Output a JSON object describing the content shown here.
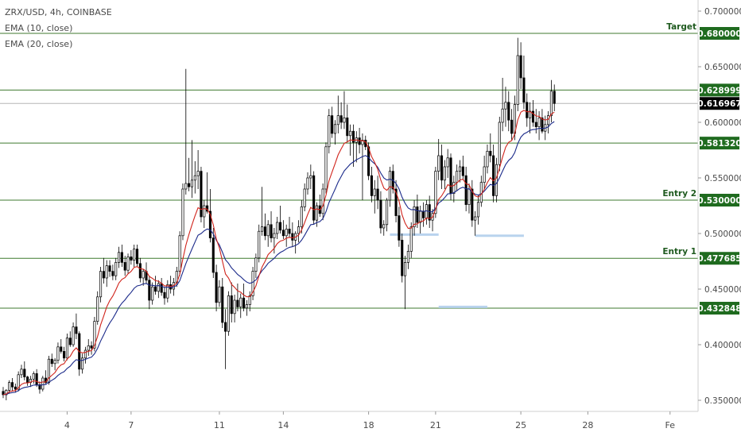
{
  "chart_data": {
    "type": "candlestick",
    "title": "ZRX/USD, 4h, COINBASE",
    "indicators": [
      "EMA (10, close)",
      "EMA (20, close)"
    ],
    "ylim": [
      0.34,
      0.71
    ],
    "y_ticks": [
      0.35,
      0.4,
      0.45,
      0.5,
      0.55,
      0.6,
      0.65,
      0.7
    ],
    "y_tick_labels": [
      "0.350000",
      "0.400000",
      "0.450000",
      "0.500000",
      "0.550000",
      "0.600000",
      "0.650000",
      "0.700000"
    ],
    "x_ticks": [
      {
        "label": "4",
        "index": 21
      },
      {
        "label": "7",
        "index": 42
      },
      {
        "label": "11",
        "index": 71
      },
      {
        "label": "14",
        "index": 92
      },
      {
        "label": "18",
        "index": 120
      },
      {
        "label": "21",
        "index": 142
      },
      {
        "label": "25",
        "index": 170
      },
      {
        "label": "28",
        "index": 192
      },
      {
        "label": "Fe",
        "index": 219
      }
    ],
    "levels": [
      {
        "value": 0.68,
        "label": "0.680000",
        "note": "Target"
      },
      {
        "value": 0.628999,
        "label": "0.628999",
        "note": ""
      },
      {
        "value": 0.58132,
        "label": "0.581320",
        "note": ""
      },
      {
        "value": 0.53,
        "label": "0.530000",
        "note": "Entry 2"
      },
      {
        "value": 0.477685,
        "label": "0.477685",
        "note": "Entry 1"
      },
      {
        "value": 0.432848,
        "label": "0.432848",
        "note": ""
      }
    ],
    "last_price": {
      "value": 0.616967,
      "label": "0.616967"
    },
    "highlights": [
      {
        "start": 127,
        "end": 143,
        "value": 0.499
      },
      {
        "start": 155,
        "end": 171,
        "value": 0.498
      },
      {
        "start": 143,
        "end": 159,
        "value": 0.434
      }
    ],
    "candles": [
      [
        0.358,
        0.362,
        0.352,
        0.355
      ],
      [
        0.355,
        0.36,
        0.35,
        0.359
      ],
      [
        0.359,
        0.368,
        0.356,
        0.366
      ],
      [
        0.366,
        0.37,
        0.358,
        0.362
      ],
      [
        0.362,
        0.365,
        0.357,
        0.36
      ],
      [
        0.36,
        0.376,
        0.358,
        0.373
      ],
      [
        0.373,
        0.382,
        0.37,
        0.378
      ],
      [
        0.378,
        0.385,
        0.368,
        0.371
      ],
      [
        0.371,
        0.372,
        0.363,
        0.366
      ],
      [
        0.366,
        0.372,
        0.362,
        0.369
      ],
      [
        0.369,
        0.376,
        0.365,
        0.374
      ],
      [
        0.374,
        0.378,
        0.362,
        0.364
      ],
      [
        0.364,
        0.367,
        0.356,
        0.36
      ],
      [
        0.36,
        0.372,
        0.358,
        0.37
      ],
      [
        0.37,
        0.377,
        0.364,
        0.366
      ],
      [
        0.366,
        0.39,
        0.364,
        0.387
      ],
      [
        0.387,
        0.392,
        0.38,
        0.383
      ],
      [
        0.383,
        0.388,
        0.377,
        0.386
      ],
      [
        0.386,
        0.402,
        0.383,
        0.398
      ],
      [
        0.398,
        0.405,
        0.392,
        0.394
      ],
      [
        0.394,
        0.398,
        0.385,
        0.388
      ],
      [
        0.388,
        0.41,
        0.386,
        0.406
      ],
      [
        0.406,
        0.412,
        0.398,
        0.4
      ],
      [
        0.4,
        0.42,
        0.398,
        0.416
      ],
      [
        0.416,
        0.428,
        0.405,
        0.41
      ],
      [
        0.41,
        0.412,
        0.372,
        0.378
      ],
      [
        0.378,
        0.392,
        0.374,
        0.388
      ],
      [
        0.388,
        0.398,
        0.383,
        0.395
      ],
      [
        0.395,
        0.405,
        0.39,
        0.399
      ],
      [
        0.399,
        0.403,
        0.391,
        0.397
      ],
      [
        0.397,
        0.425,
        0.394,
        0.421
      ],
      [
        0.421,
        0.448,
        0.418,
        0.443
      ],
      [
        0.443,
        0.47,
        0.438,
        0.466
      ],
      [
        0.466,
        0.478,
        0.455,
        0.46
      ],
      [
        0.46,
        0.476,
        0.452,
        0.471
      ],
      [
        0.471,
        0.476,
        0.461,
        0.466
      ],
      [
        0.466,
        0.472,
        0.458,
        0.462
      ],
      [
        0.462,
        0.478,
        0.458,
        0.474
      ],
      [
        0.474,
        0.488,
        0.469,
        0.483
      ],
      [
        0.483,
        0.49,
        0.47,
        0.474
      ],
      [
        0.474,
        0.48,
        0.462,
        0.467
      ],
      [
        0.467,
        0.482,
        0.464,
        0.479
      ],
      [
        0.479,
        0.485,
        0.472,
        0.476
      ],
      [
        0.476,
        0.49,
        0.47,
        0.486
      ],
      [
        0.486,
        0.49,
        0.47,
        0.473
      ],
      [
        0.473,
        0.478,
        0.456,
        0.46
      ],
      [
        0.46,
        0.468,
        0.453,
        0.466
      ],
      [
        0.466,
        0.474,
        0.455,
        0.458
      ],
      [
        0.458,
        0.462,
        0.432,
        0.44
      ],
      [
        0.44,
        0.456,
        0.436,
        0.452
      ],
      [
        0.452,
        0.462,
        0.445,
        0.448
      ],
      [
        0.448,
        0.458,
        0.442,
        0.455
      ],
      [
        0.455,
        0.46,
        0.444,
        0.447
      ],
      [
        0.447,
        0.452,
        0.436,
        0.442
      ],
      [
        0.442,
        0.458,
        0.438,
        0.454
      ],
      [
        0.454,
        0.462,
        0.446,
        0.45
      ],
      [
        0.45,
        0.46,
        0.444,
        0.456
      ],
      [
        0.456,
        0.47,
        0.452,
        0.466
      ],
      [
        0.466,
        0.502,
        0.462,
        0.498
      ],
      [
        0.498,
        0.545,
        0.494,
        0.54
      ],
      [
        0.54,
        0.648,
        0.535,
        0.545
      ],
      [
        0.545,
        0.568,
        0.538,
        0.542
      ],
      [
        0.542,
        0.584,
        0.532,
        0.548
      ],
      [
        0.548,
        0.565,
        0.536,
        0.552
      ],
      [
        0.552,
        0.575,
        0.54,
        0.556
      ],
      [
        0.556,
        0.56,
        0.51,
        0.515
      ],
      [
        0.515,
        0.53,
        0.505,
        0.525
      ],
      [
        0.525,
        0.555,
        0.518,
        0.52
      ],
      [
        0.52,
        0.54,
        0.492,
        0.496
      ],
      [
        0.496,
        0.505,
        0.46,
        0.465
      ],
      [
        0.465,
        0.472,
        0.43,
        0.438
      ],
      [
        0.438,
        0.458,
        0.434,
        0.452
      ],
      [
        0.452,
        0.46,
        0.415,
        0.42
      ],
      [
        0.42,
        0.432,
        0.378,
        0.412
      ],
      [
        0.412,
        0.448,
        0.408,
        0.444
      ],
      [
        0.444,
        0.456,
        0.42,
        0.428
      ],
      [
        0.428,
        0.445,
        0.42,
        0.44
      ],
      [
        0.44,
        0.455,
        0.43,
        0.434
      ],
      [
        0.434,
        0.446,
        0.424,
        0.442
      ],
      [
        0.442,
        0.455,
        0.43,
        0.433
      ],
      [
        0.433,
        0.44,
        0.426,
        0.436
      ],
      [
        0.436,
        0.448,
        0.43,
        0.444
      ],
      [
        0.444,
        0.47,
        0.44,
        0.466
      ],
      [
        0.466,
        0.482,
        0.46,
        0.478
      ],
      [
        0.478,
        0.508,
        0.474,
        0.502
      ],
      [
        0.502,
        0.542,
        0.498,
        0.506
      ],
      [
        0.506,
        0.518,
        0.494,
        0.498
      ],
      [
        0.498,
        0.512,
        0.488,
        0.508
      ],
      [
        0.508,
        0.52,
        0.492,
        0.496
      ],
      [
        0.496,
        0.505,
        0.482,
        0.5
      ],
      [
        0.5,
        0.515,
        0.495,
        0.51
      ],
      [
        0.51,
        0.525,
        0.5,
        0.503
      ],
      [
        0.503,
        0.512,
        0.495,
        0.498
      ],
      [
        0.498,
        0.508,
        0.488,
        0.504
      ],
      [
        0.504,
        0.515,
        0.496,
        0.5
      ],
      [
        0.5,
        0.51,
        0.488,
        0.494
      ],
      [
        0.494,
        0.502,
        0.482,
        0.5
      ],
      [
        0.5,
        0.512,
        0.492,
        0.506
      ],
      [
        0.506,
        0.53,
        0.5,
        0.524
      ],
      [
        0.524,
        0.545,
        0.52,
        0.54
      ],
      [
        0.54,
        0.555,
        0.535,
        0.55
      ],
      [
        0.55,
        0.562,
        0.54,
        0.552
      ],
      [
        0.552,
        0.556,
        0.508,
        0.512
      ],
      [
        0.512,
        0.528,
        0.506,
        0.525
      ],
      [
        0.525,
        0.535,
        0.515,
        0.518
      ],
      [
        0.518,
        0.545,
        0.512,
        0.54
      ],
      [
        0.54,
        0.582,
        0.536,
        0.578
      ],
      [
        0.578,
        0.612,
        0.572,
        0.606
      ],
      [
        0.606,
        0.614,
        0.586,
        0.59
      ],
      [
        0.59,
        0.602,
        0.58,
        0.598
      ],
      [
        0.598,
        0.624,
        0.59,
        0.606
      ],
      [
        0.606,
        0.618,
        0.594,
        0.6
      ],
      [
        0.6,
        0.628,
        0.594,
        0.604
      ],
      [
        0.604,
        0.616,
        0.582,
        0.588
      ],
      [
        0.588,
        0.598,
        0.57,
        0.592
      ],
      [
        0.592,
        0.598,
        0.56,
        0.582
      ],
      [
        0.582,
        0.592,
        0.564,
        0.586
      ],
      [
        0.586,
        0.595,
        0.572,
        0.58
      ],
      [
        0.58,
        0.59,
        0.53,
        0.584
      ],
      [
        0.584,
        0.588,
        0.575,
        0.578
      ],
      [
        0.578,
        0.582,
        0.548,
        0.552
      ],
      [
        0.552,
        0.56,
        0.528,
        0.534
      ],
      [
        0.534,
        0.548,
        0.518,
        0.54
      ],
      [
        0.54,
        0.552,
        0.522,
        0.53
      ],
      [
        0.53,
        0.538,
        0.5,
        0.505
      ],
      [
        0.505,
        0.512,
        0.498,
        0.508
      ],
      [
        0.508,
        0.532,
        0.502,
        0.53
      ],
      [
        0.53,
        0.56,
        0.524,
        0.556
      ],
      [
        0.556,
        0.562,
        0.536,
        0.54
      ],
      [
        0.54,
        0.548,
        0.51,
        0.516
      ],
      [
        0.516,
        0.524,
        0.488,
        0.494
      ],
      [
        0.494,
        0.5,
        0.456,
        0.462
      ],
      [
        0.462,
        0.48,
        0.432,
        0.474
      ],
      [
        0.474,
        0.49,
        0.468,
        0.484
      ],
      [
        0.484,
        0.51,
        0.478,
        0.506
      ],
      [
        0.506,
        0.53,
        0.498,
        0.524
      ],
      [
        0.524,
        0.535,
        0.505,
        0.51
      ],
      [
        0.51,
        0.525,
        0.5,
        0.52
      ],
      [
        0.52,
        0.528,
        0.506,
        0.514
      ],
      [
        0.514,
        0.53,
        0.508,
        0.526
      ],
      [
        0.526,
        0.534,
        0.505,
        0.512
      ],
      [
        0.512,
        0.522,
        0.502,
        0.518
      ],
      [
        0.518,
        0.56,
        0.514,
        0.556
      ],
      [
        0.556,
        0.585,
        0.548,
        0.57
      ],
      [
        0.57,
        0.58,
        0.54,
        0.548
      ],
      [
        0.548,
        0.566,
        0.54,
        0.56
      ],
      [
        0.56,
        0.576,
        0.55,
        0.568
      ],
      [
        0.568,
        0.572,
        0.53,
        0.536
      ],
      [
        0.536,
        0.552,
        0.528,
        0.546
      ],
      [
        0.546,
        0.562,
        0.538,
        0.556
      ],
      [
        0.556,
        0.566,
        0.546,
        0.56
      ],
      [
        0.56,
        0.57,
        0.548,
        0.552
      ],
      [
        0.552,
        0.56,
        0.52,
        0.526
      ],
      [
        0.526,
        0.545,
        0.518,
        0.54
      ],
      [
        0.54,
        0.548,
        0.506,
        0.512
      ],
      [
        0.512,
        0.52,
        0.498,
        0.515
      ],
      [
        0.515,
        0.535,
        0.508,
        0.528
      ],
      [
        0.528,
        0.552,
        0.524,
        0.546
      ],
      [
        0.546,
        0.57,
        0.54,
        0.56
      ],
      [
        0.56,
        0.58,
        0.554,
        0.574
      ],
      [
        0.574,
        0.59,
        0.564,
        0.57
      ],
      [
        0.57,
        0.58,
        0.528,
        0.534
      ],
      [
        0.534,
        0.568,
        0.528,
        0.562
      ],
      [
        0.562,
        0.605,
        0.556,
        0.6
      ],
      [
        0.6,
        0.64,
        0.592,
        0.612
      ],
      [
        0.612,
        0.632,
        0.596,
        0.618
      ],
      [
        0.618,
        0.628,
        0.592,
        0.602
      ],
      [
        0.602,
        0.612,
        0.584,
        0.59
      ],
      [
        0.59,
        0.624,
        0.584,
        0.616
      ],
      [
        0.616,
        0.676,
        0.61,
        0.66
      ],
      [
        0.66,
        0.672,
        0.63,
        0.64
      ],
      [
        0.64,
        0.66,
        0.612,
        0.618
      ],
      [
        0.618,
        0.626,
        0.596,
        0.604
      ],
      [
        0.604,
        0.618,
        0.59,
        0.61
      ],
      [
        0.61,
        0.62,
        0.596,
        0.6
      ],
      [
        0.6,
        0.612,
        0.59,
        0.596
      ],
      [
        0.596,
        0.61,
        0.584,
        0.604
      ],
      [
        0.604,
        0.612,
        0.59,
        0.592
      ],
      [
        0.592,
        0.606,
        0.584,
        0.598
      ],
      [
        0.598,
        0.61,
        0.59,
        0.606
      ],
      [
        0.606,
        0.638,
        0.6,
        0.628
      ],
      [
        0.628,
        0.634,
        0.61,
        0.617
      ]
    ]
  }
}
